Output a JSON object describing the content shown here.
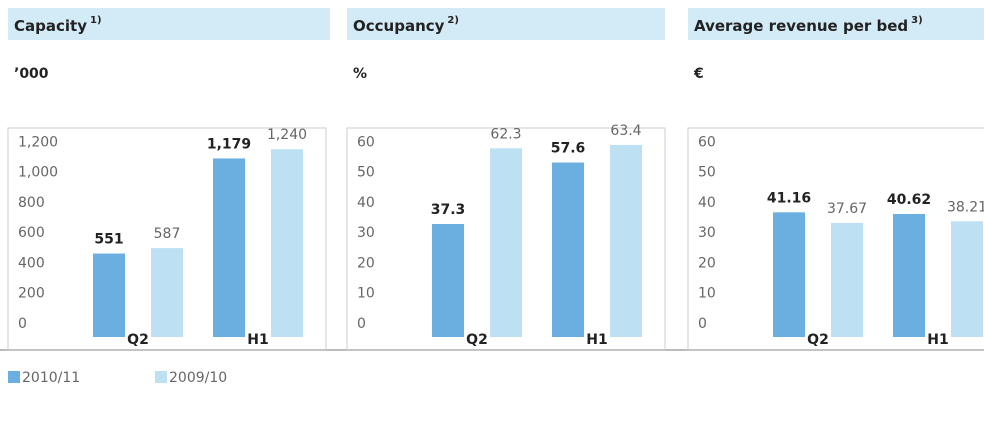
{
  "chart_data": [
    {
      "type": "bar",
      "title": "Capacity",
      "title_note": "1)",
      "unit": "’000",
      "categories": [
        "Q2",
        "H1"
      ],
      "series": [
        {
          "name": "2010/11",
          "color": "#6aafe0",
          "values": [
            551,
            1179
          ],
          "value_labels": [
            "551",
            "1,179"
          ]
        },
        {
          "name": "2009/10",
          "color": "#bde0f2",
          "values": [
            587,
            1240
          ],
          "value_labels": [
            "587",
            "1,240"
          ]
        }
      ],
      "ylim": [
        0,
        1380
      ],
      "yticks": [
        0,
        200,
        400,
        600,
        800,
        {
          "value": 1000,
          "label": "1,000"
        },
        {
          "value": 1200,
          "label": "1,200"
        }
      ]
    },
    {
      "type": "bar",
      "title": "Occupancy",
      "title_note": "2)",
      "unit": "%",
      "categories": [
        "Q2",
        "H1"
      ],
      "series": [
        {
          "name": "2010/11",
          "color": "#6aafe0",
          "values": [
            37.3,
            57.6
          ]
        },
        {
          "name": "2009/10",
          "color": "#bde0f2",
          "values": [
            62.3,
            63.4
          ]
        }
      ],
      "ylim": [
        0,
        69
      ],
      "yticks": [
        0,
        10,
        20,
        30,
        40,
        50,
        60
      ]
    },
    {
      "type": "bar",
      "title": "Average revenue per bed",
      "title_note": "3)",
      "unit": "€",
      "categories": [
        "Q2",
        "H1"
      ],
      "series": [
        {
          "name": "2010/11",
          "color": "#6aafe0",
          "values": [
            41.16,
            40.62
          ]
        },
        {
          "name": "2009/10",
          "color": "#bde0f2",
          "values": [
            37.67,
            38.21
          ]
        }
      ],
      "ylim": [
        0,
        69
      ],
      "yticks": [
        0,
        10,
        20,
        30,
        40,
        50,
        60
      ]
    }
  ]
}
